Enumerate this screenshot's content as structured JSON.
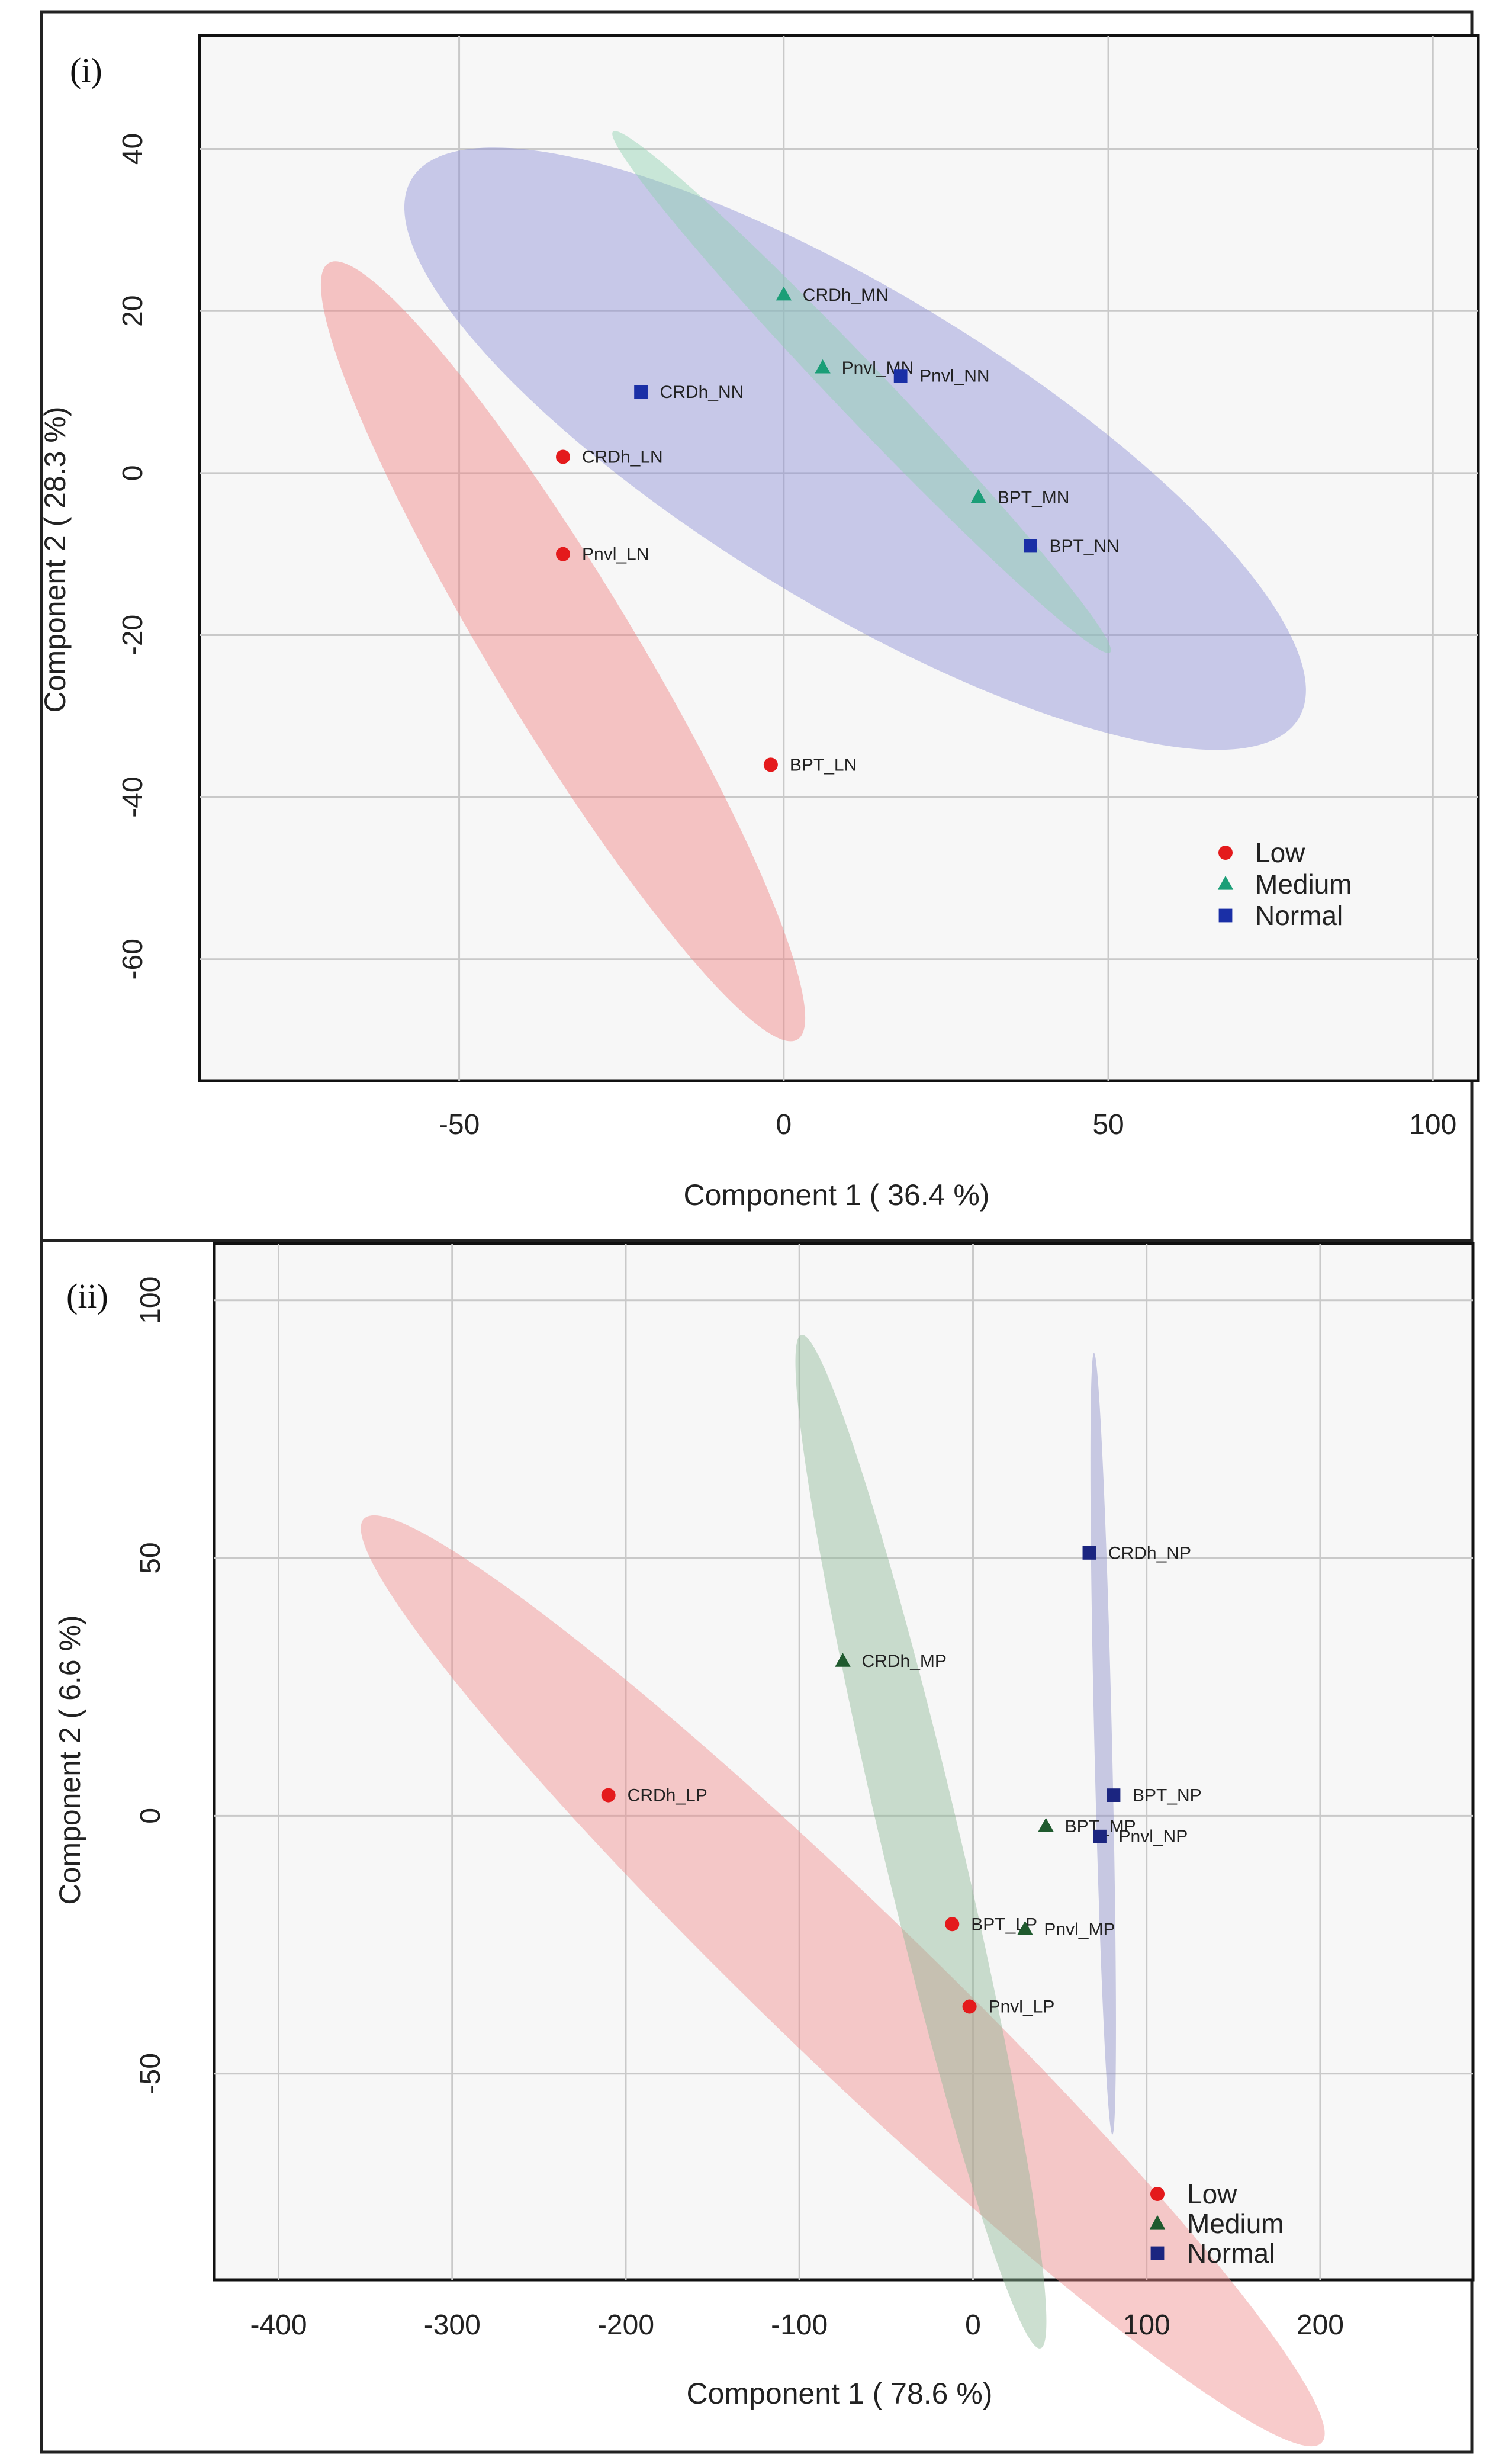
{
  "figure": {
    "panels": [
      {
        "label": "(i)",
        "legend": [
          {
            "name": "Low",
            "color": "#e41a1c",
            "marker": "circle"
          },
          {
            "name": "Medium",
            "color": "#1b9e77",
            "marker": "triangle"
          },
          {
            "name": "Normal",
            "color": "#1a2fa6",
            "marker": "square"
          }
        ]
      },
      {
        "label": "(ii)",
        "legend": [
          {
            "name": "Low",
            "color": "#e41a1c",
            "marker": "circle"
          },
          {
            "name": "Medium",
            "color": "#1f5a2e",
            "marker": "triangle"
          },
          {
            "name": "Normal",
            "color": "#1b2580",
            "marker": "square"
          }
        ]
      }
    ]
  },
  "chart_data": [
    {
      "type": "scatter",
      "title": "",
      "xlabel": "Component 1 ( 36.4 %)",
      "ylabel": "Component 2 ( 28.3 %)",
      "xlim": [
        -90,
        107
      ],
      "ylim": [
        -75,
        54
      ],
      "xticks": [
        -50,
        0,
        50,
        100
      ],
      "yticks": [
        40,
        20,
        0,
        -20,
        -40,
        -60
      ],
      "grid": true,
      "legend_position": "bottom-right",
      "ellipses": [
        {
          "group": "Low",
          "color": "#f08080",
          "opacity": 0.45,
          "cx": -34,
          "cy": -22,
          "semi_major": 60,
          "semi_minor": 10,
          "angle_deg": -53
        },
        {
          "group": "Normal",
          "color": "#8c8fd4",
          "opacity": 0.45,
          "cx": 11,
          "cy": 3,
          "semi_major": 76,
          "semi_minor": 20,
          "angle_deg": -26
        },
        {
          "group": "Medium",
          "color": "#8fd0b0",
          "opacity": 0.45,
          "cx": 12,
          "cy": 10,
          "semi_major": 50,
          "semi_minor": 3.5,
          "angle_deg": -40
        }
      ],
      "series": [
        {
          "name": "Low",
          "color": "#e41a1c",
          "marker": "circle",
          "points": [
            {
              "label": "CRDh_LN",
              "x": -34,
              "y": 2
            },
            {
              "label": "Pnvl_LN",
              "x": -34,
              "y": -10
            },
            {
              "label": "BPT_LN",
              "x": -2,
              "y": -36
            }
          ]
        },
        {
          "name": "Medium",
          "color": "#1b9e77",
          "marker": "triangle",
          "points": [
            {
              "label": "CRDh_MN",
              "x": 0,
              "y": 22
            },
            {
              "label": "Pnvl_MN",
              "x": 6,
              "y": 13
            },
            {
              "label": "BPT_MN",
              "x": 30,
              "y": -3
            }
          ]
        },
        {
          "name": "Normal",
          "color": "#1a2fa6",
          "marker": "square",
          "points": [
            {
              "label": "CRDh_NN",
              "x": -22,
              "y": 10
            },
            {
              "label": "Pnvl_NN",
              "x": 18,
              "y": 12
            },
            {
              "label": "BPT_NN",
              "x": 38,
              "y": -9
            }
          ]
        }
      ]
    },
    {
      "type": "scatter",
      "title": "",
      "xlabel": "Component 1 ( 78.6 %)",
      "ylabel": "Component 2 ( 6.6 %)",
      "xlim": [
        -437,
        288
      ],
      "ylim": [
        -90,
        111
      ],
      "xticks": [
        -400,
        -300,
        -200,
        -100,
        0,
        100,
        200
      ],
      "yticks": [
        100,
        50,
        0,
        -50
      ],
      "grid": true,
      "legend_position": "bottom-right",
      "ellipses": [
        {
          "group": "Low",
          "color": "#f08c8c",
          "opacity": 0.45,
          "cx": -75,
          "cy": -32,
          "semi_major": 290,
          "semi_minor": 16,
          "angle_deg": -18
        },
        {
          "group": "Medium",
          "color": "#8fb896",
          "opacity": 0.45,
          "cx": -30,
          "cy": -5,
          "semi_major": 120,
          "semi_minor": 12,
          "angle_deg": -55
        },
        {
          "group": "Normal",
          "color": "#8c8fc8",
          "opacity": 0.45,
          "cx": 75,
          "cy": 14,
          "semi_major": 76,
          "semi_minor": 5,
          "angle_deg": -86
        }
      ],
      "series": [
        {
          "name": "Low",
          "color": "#e41a1c",
          "marker": "circle",
          "points": [
            {
              "label": "CRDh_LP",
              "x": -210,
              "y": 4
            },
            {
              "label": "BPT_LP",
              "x": -12,
              "y": -21
            },
            {
              "label": "Pnvl_LP",
              "x": -2,
              "y": -37
            }
          ]
        },
        {
          "name": "Medium",
          "color": "#1f5a2e",
          "marker": "triangle",
          "points": [
            {
              "label": "CRDh_MP",
              "x": -75,
              "y": 30
            },
            {
              "label": "BPT_MP",
              "x": 42,
              "y": -2
            },
            {
              "label": "Pnvl_MP",
              "x": 30,
              "y": -22
            }
          ]
        },
        {
          "name": "Normal",
          "color": "#1b2580",
          "marker": "square",
          "points": [
            {
              "label": "CRDh_NP",
              "x": 67,
              "y": 51
            },
            {
              "label": "BPT_NP",
              "x": 81,
              "y": 4
            },
            {
              "label": "Pnvl_NP",
              "x": 73,
              "y": -4
            }
          ]
        }
      ]
    }
  ]
}
